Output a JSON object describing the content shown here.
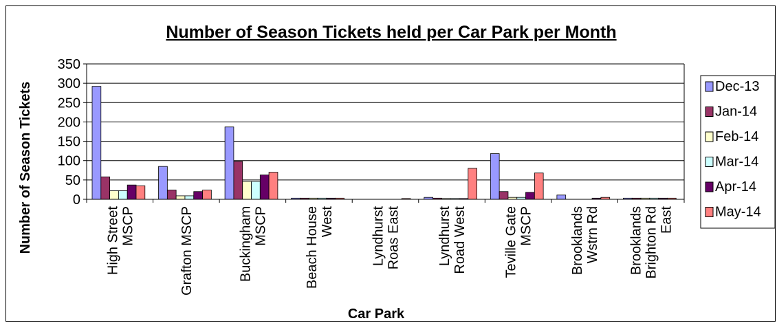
{
  "chart_data": {
    "type": "bar",
    "title": "Number of Season Tickets held per Car Park per Month",
    "xlabel": "Car Park",
    "ylabel": "Number of Season Tickets",
    "ylim": [
      0,
      350
    ],
    "yticks": [
      0,
      50,
      100,
      150,
      200,
      250,
      300,
      350
    ],
    "grid": true,
    "legend_position": "right",
    "categories": [
      [
        "High Street",
        "MSCP"
      ],
      [
        "Grafton MSCP"
      ],
      [
        "Buckingham",
        "MSCP"
      ],
      [
        "Beach House",
        "West"
      ],
      [
        "Lyndhurst",
        "Roas East"
      ],
      [
        "Lyndhurst",
        "Road West"
      ],
      [
        "Teville Gate",
        "MSCP"
      ],
      [
        "Brooklands",
        "Wstrn Rd"
      ],
      [
        "Brooklands",
        "Brighton Rd",
        "East"
      ]
    ],
    "series": [
      {
        "name": "Dec-13",
        "color": "#9999ff",
        "values": [
          292,
          85,
          187,
          3,
          0,
          5,
          118,
          11,
          3
        ]
      },
      {
        "name": "Jan-14",
        "color": "#993366",
        "values": [
          58,
          24,
          98,
          3,
          0,
          3,
          20,
          0,
          3
        ]
      },
      {
        "name": "Feb-14",
        "color": "#ffffcc",
        "values": [
          22,
          9,
          46,
          3,
          0,
          2,
          5,
          0,
          3
        ]
      },
      {
        "name": "Mar-14",
        "color": "#ccffff",
        "values": [
          22,
          9,
          46,
          3,
          0,
          2,
          5,
          0,
          3
        ]
      },
      {
        "name": "Apr-14",
        "color": "#660066",
        "values": [
          37,
          20,
          63,
          3,
          0,
          2,
          18,
          3,
          3
        ]
      },
      {
        "name": "May-14",
        "color": "#ff8080",
        "values": [
          35,
          24,
          70,
          3,
          2,
          80,
          68,
          5,
          3
        ]
      }
    ]
  }
}
